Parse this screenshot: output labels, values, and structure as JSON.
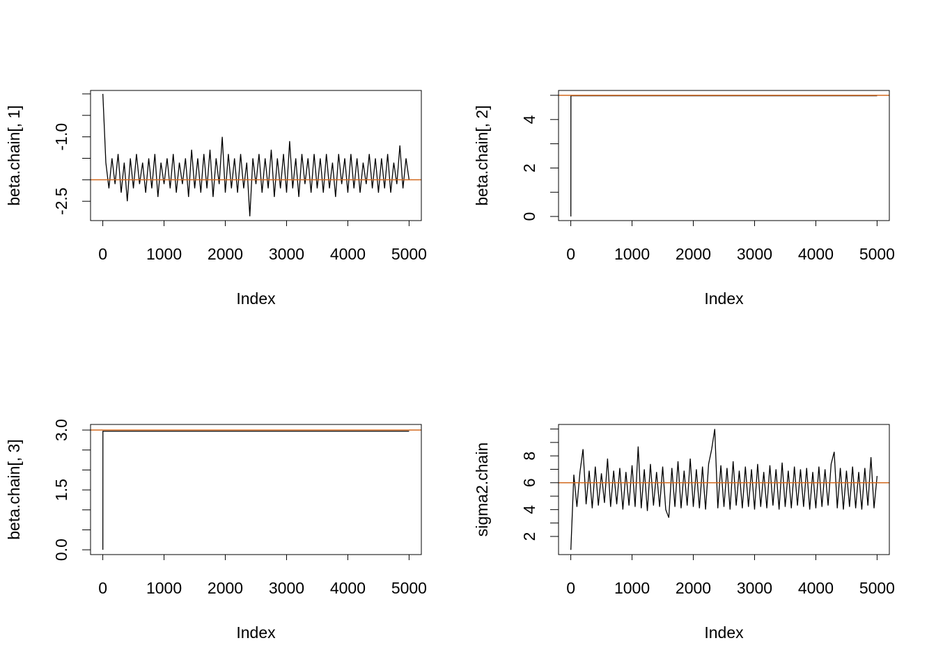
{
  "chart_data": [
    {
      "type": "line",
      "ylabel": "beta.chain[, 1]",
      "xlabel": "Index",
      "x": [
        1,
        50,
        100,
        150,
        200,
        250,
        300,
        350,
        400,
        450,
        500,
        550,
        600,
        650,
        700,
        750,
        800,
        850,
        900,
        950,
        1000,
        1050,
        1100,
        1150,
        1200,
        1250,
        1300,
        1350,
        1400,
        1450,
        1500,
        1550,
        1600,
        1650,
        1700,
        1750,
        1800,
        1850,
        1900,
        1950,
        2000,
        2050,
        2100,
        2150,
        2200,
        2250,
        2300,
        2350,
        2400,
        2450,
        2500,
        2550,
        2600,
        2650,
        2700,
        2750,
        2800,
        2850,
        2900,
        2950,
        3000,
        3050,
        3100,
        3150,
        3200,
        3250,
        3300,
        3350,
        3400,
        3450,
        3500,
        3550,
        3600,
        3650,
        3700,
        3750,
        3800,
        3850,
        3900,
        3950,
        4000,
        4050,
        4100,
        4150,
        4200,
        4250,
        4300,
        4350,
        4400,
        4450,
        4500,
        4550,
        4600,
        4650,
        4700,
        4750,
        4800,
        4850,
        4900,
        4950,
        5000
      ],
      "series": [
        {
          "color": "#000000",
          "values": [
            0,
            -1.6,
            -2.2,
            -1.5,
            -2.1,
            -1.4,
            -2.3,
            -1.6,
            -2.5,
            -1.5,
            -2.2,
            -1.4,
            -2.1,
            -1.6,
            -2.3,
            -1.5,
            -2.2,
            -1.4,
            -2.4,
            -1.6,
            -2.1,
            -1.5,
            -2.2,
            -1.4,
            -2.3,
            -1.6,
            -2.1,
            -1.5,
            -2.4,
            -1.3,
            -2.2,
            -1.5,
            -2.3,
            -1.4,
            -2.2,
            -1.3,
            -2.4,
            -1.5,
            -2.1,
            -1.0,
            -2.3,
            -1.4,
            -2.2,
            -1.5,
            -2.3,
            -1.4,
            -2.2,
            -1.6,
            -2.85,
            -1.5,
            -2.1,
            -1.4,
            -2.3,
            -1.5,
            -2.2,
            -1.3,
            -2.4,
            -1.5,
            -2.2,
            -1.4,
            -2.3,
            -1.1,
            -2.2,
            -1.5,
            -2.4,
            -1.4,
            -2.1,
            -1.5,
            -2.3,
            -1.4,
            -2.2,
            -1.5,
            -2.3,
            -1.4,
            -2.2,
            -1.6,
            -2.4,
            -1.4,
            -2.1,
            -1.5,
            -2.3,
            -1.4,
            -2.2,
            -1.5,
            -2.3,
            -1.6,
            -2.1,
            -1.4,
            -2.2,
            -1.5,
            -2.3,
            -1.5,
            -2.2,
            -1.4,
            -2.3,
            -1.6,
            -2.1,
            -1.2,
            -2.2,
            -1.5,
            -2.0
          ]
        }
      ],
      "xlim": [
        -200,
        5200
      ],
      "xticks": [
        0,
        1000,
        2000,
        3000,
        4000,
        5000
      ],
      "ylim": [
        -2.95,
        0.08
      ],
      "yticks": [
        {
          "value": -2.5,
          "label": "-2.5"
        },
        {
          "value": -2.0,
          "label": null
        },
        {
          "value": -1.5,
          "label": null
        },
        {
          "value": -1.0,
          "label": "-1.0"
        },
        {
          "value": -0.5,
          "label": null
        },
        {
          "value": 0.0,
          "label": null
        }
      ],
      "hline": -2.0,
      "hline_color": "#d2691e"
    },
    {
      "type": "line",
      "ylabel": "beta.chain[, 2]",
      "xlabel": "Index",
      "x": [
        1,
        2,
        5000
      ],
      "series": [
        {
          "color": "#000000",
          "values": [
            0,
            4.98,
            4.98
          ]
        }
      ],
      "xlim": [
        -200,
        5200
      ],
      "xticks": [
        0,
        1000,
        2000,
        3000,
        4000,
        5000
      ],
      "ylim": [
        -0.17,
        5.2
      ],
      "yticks": [
        0,
        {
          "value": 1,
          "label": null
        },
        2,
        {
          "value": 3,
          "label": null
        },
        4,
        {
          "value": 5,
          "label": null
        }
      ],
      "hline": 5,
      "hline_color": "#d2691e"
    },
    {
      "type": "line",
      "ylabel": "beta.chain[, 3]",
      "xlabel": "Index",
      "x": [
        1,
        2,
        5000
      ],
      "series": [
        {
          "color": "#000000",
          "values": [
            0,
            2.97,
            2.97
          ]
        }
      ],
      "xlim": [
        -200,
        5200
      ],
      "xticks": [
        0,
        1000,
        2000,
        3000,
        4000,
        5000
      ],
      "ylim": [
        -0.12,
        3.14
      ],
      "yticks": [
        {
          "value": 0,
          "label": "0.0"
        },
        {
          "value": 0.5,
          "label": null
        },
        {
          "value": 1.0,
          "label": null
        },
        {
          "value": 1.5,
          "label": "1.5"
        },
        {
          "value": 2.0,
          "label": null
        },
        {
          "value": 2.5,
          "label": null
        },
        {
          "value": 3,
          "label": "3.0"
        }
      ],
      "hline": 3,
      "hline_color": "#d2691e"
    },
    {
      "type": "line",
      "ylabel": "sigma2.chain",
      "xlabel": "Index",
      "x": [
        1,
        50,
        100,
        150,
        200,
        250,
        300,
        350,
        400,
        450,
        500,
        550,
        600,
        650,
        700,
        750,
        800,
        850,
        900,
        950,
        1000,
        1050,
        1100,
        1150,
        1200,
        1250,
        1300,
        1350,
        1400,
        1450,
        1500,
        1550,
        1600,
        1650,
        1700,
        1750,
        1800,
        1850,
        1900,
        1950,
        2000,
        2050,
        2100,
        2150,
        2200,
        2250,
        2300,
        2350,
        2400,
        2450,
        2500,
        2550,
        2600,
        2650,
        2700,
        2750,
        2800,
        2850,
        2900,
        2950,
        3000,
        3050,
        3100,
        3150,
        3200,
        3250,
        3300,
        3350,
        3400,
        3450,
        3500,
        3550,
        3600,
        3650,
        3700,
        3750,
        3800,
        3850,
        3900,
        3950,
        4000,
        4050,
        4100,
        4150,
        4200,
        4250,
        4300,
        4350,
        4400,
        4450,
        4500,
        4550,
        4600,
        4650,
        4700,
        4750,
        4800,
        4850,
        4900,
        4950,
        5000
      ],
      "series": [
        {
          "color": "#000000",
          "values": [
            1,
            6.6,
            4.2,
            6.8,
            8.5,
            4.4,
            6.9,
            4.1,
            7.2,
            4.3,
            6.7,
            4.5,
            7.8,
            4.2,
            6.9,
            4.4,
            7.1,
            4.0,
            6.8,
            4.3,
            7.3,
            4.2,
            8.7,
            4.1,
            7.0,
            3.9,
            7.4,
            4.3,
            6.8,
            4.2,
            7.2,
            4.0,
            3.4,
            7.1,
            4.2,
            7.6,
            4.1,
            6.9,
            4.3,
            7.8,
            4.2,
            7.0,
            4.1,
            7.2,
            4.0,
            7.4,
            8.5,
            10.0,
            4.1,
            7.3,
            4.2,
            7.1,
            4.0,
            7.6,
            4.3,
            6.9,
            4.1,
            7.2,
            4.2,
            7.0,
            4.0,
            7.4,
            4.2,
            6.8,
            4.1,
            7.3,
            4.3,
            7.0,
            4.0,
            7.5,
            4.2,
            6.9,
            4.1,
            7.2,
            4.3,
            7.0,
            4.2,
            7.1,
            4.0,
            6.8,
            4.1,
            7.2,
            4.2,
            7.0,
            4.3,
            7.4,
            8.3,
            4.1,
            7.1,
            4.0,
            6.9,
            4.2,
            7.2,
            4.1,
            6.8,
            4.0,
            7.1,
            4.3,
            7.9,
            4.1,
            6.5
          ]
        }
      ],
      "xlim": [
        -200,
        5200
      ],
      "xticks": [
        0,
        1000,
        2000,
        3000,
        4000,
        5000
      ],
      "ylim": [
        0.65,
        10.34
      ],
      "yticks": [
        2,
        {
          "value": 3,
          "label": null
        },
        4,
        {
          "value": 5,
          "label": null
        },
        6,
        {
          "value": 7,
          "label": null
        },
        8,
        {
          "value": 9,
          "label": null
        },
        {
          "value": 10,
          "label": null
        }
      ],
      "hline": 6,
      "hline_color": "#d2691e"
    }
  ]
}
